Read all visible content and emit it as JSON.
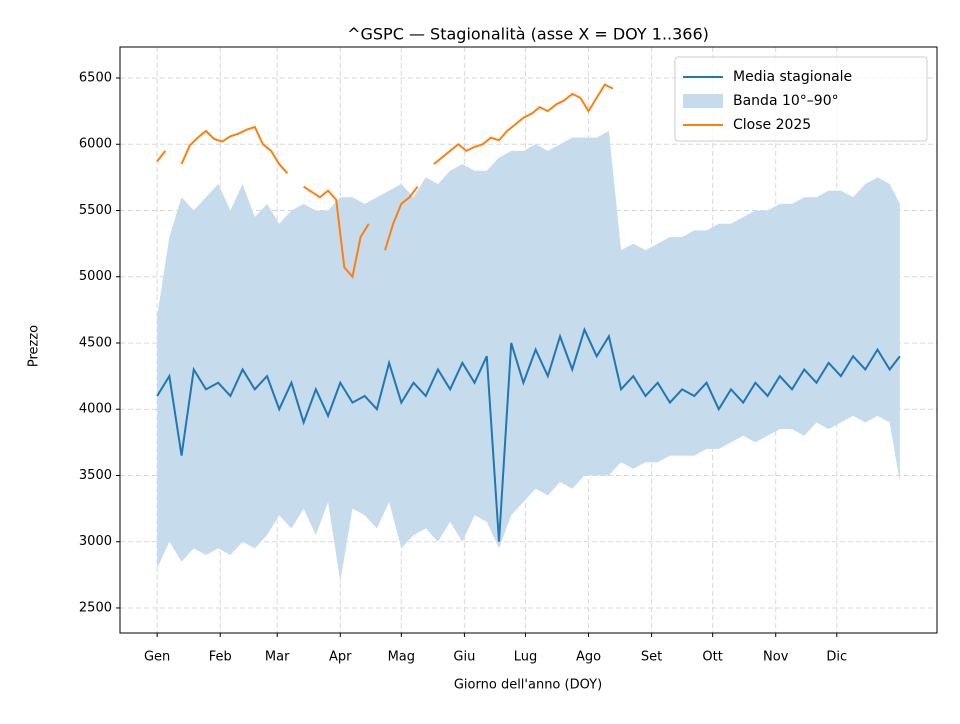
{
  "chart_data": {
    "type": "line",
    "title": "^GSPC — Stagionalità (asse X = DOY 1..366)",
    "x_label": "Giorno dell'anno (DOY)",
    "y_label": "Prezzo",
    "xlim": [
      -17.25,
      384.25
    ],
    "ylim": [
      2311,
      6734
    ],
    "xticks": [
      {
        "value": 1,
        "label": "Gen"
      },
      {
        "value": 32,
        "label": "Feb"
      },
      {
        "value": 60,
        "label": "Mar"
      },
      {
        "value": 91,
        "label": "Apr"
      },
      {
        "value": 121,
        "label": "Mag"
      },
      {
        "value": 152,
        "label": "Giu"
      },
      {
        "value": 182,
        "label": "Lug"
      },
      {
        "value": 213,
        "label": "Ago"
      },
      {
        "value": 244,
        "label": "Set"
      },
      {
        "value": 274,
        "label": "Ott"
      },
      {
        "value": 305,
        "label": "Nov"
      },
      {
        "value": 335,
        "label": "Dic"
      }
    ],
    "yticks": [
      2500,
      3000,
      3500,
      4000,
      4500,
      5000,
      5500,
      6000,
      6500
    ],
    "grid": true,
    "legend": "upper right",
    "series": [
      {
        "name": "Media stagionale",
        "kind": "line",
        "color": "#1f77b4",
        "x": [
          1,
          7,
          13,
          19,
          25,
          31,
          37,
          43,
          49,
          55,
          61,
          67,
          73,
          79,
          85,
          91,
          97,
          103,
          109,
          115,
          121,
          127,
          133,
          139,
          145,
          151,
          157,
          163,
          169,
          175,
          181,
          187,
          193,
          199,
          205,
          211,
          217,
          223,
          229,
          235,
          241,
          247,
          253,
          259,
          265,
          271,
          277,
          283,
          289,
          295,
          301,
          307,
          313,
          319,
          325,
          331,
          337,
          343,
          349,
          355,
          361,
          366
        ],
        "values": [
          4100,
          4250,
          3650,
          4300,
          4150,
          4200,
          4100,
          4300,
          4150,
          4250,
          4000,
          4200,
          3900,
          4150,
          3950,
          4200,
          4050,
          4100,
          4000,
          4350,
          4050,
          4200,
          4100,
          4300,
          4150,
          4350,
          4200,
          4400,
          3000,
          4500,
          4200,
          4450,
          4250,
          4550,
          4300,
          4600,
          4400,
          4550,
          4150,
          4250,
          4100,
          4200,
          4050,
          4150,
          4100,
          4200,
          4000,
          4150,
          4050,
          4200,
          4100,
          4250,
          4150,
          4300,
          4200,
          4350,
          4250,
          4400,
          4300,
          4450,
          4300,
          4400
        ]
      },
      {
        "name": "Banda 10°–90°",
        "kind": "band",
        "color": "#c6dcec",
        "x": [
          1,
          7,
          13,
          19,
          25,
          31,
          37,
          43,
          49,
          55,
          61,
          67,
          73,
          79,
          85,
          91,
          97,
          103,
          109,
          115,
          121,
          127,
          133,
          139,
          145,
          151,
          157,
          163,
          169,
          175,
          181,
          187,
          193,
          199,
          205,
          211,
          217,
          223,
          229,
          235,
          241,
          247,
          253,
          259,
          265,
          271,
          277,
          283,
          289,
          295,
          301,
          307,
          313,
          319,
          325,
          331,
          337,
          343,
          349,
          355,
          361,
          366
        ],
        "lower": [
          2800,
          3000,
          2850,
          2950,
          2900,
          2950,
          2900,
          3000,
          2950,
          3050,
          3200,
          3100,
          3250,
          3050,
          3300,
          2700,
          3250,
          3200,
          3100,
          3300,
          2950,
          3050,
          3100,
          3000,
          3150,
          3000,
          3200,
          3150,
          2950,
          3200,
          3300,
          3400,
          3350,
          3450,
          3400,
          3500,
          3500,
          3500,
          3600,
          3550,
          3600,
          3600,
          3650,
          3650,
          3650,
          3700,
          3700,
          3750,
          3800,
          3750,
          3800,
          3850,
          3850,
          3800,
          3900,
          3850,
          3900,
          3950,
          3900,
          3950,
          3900,
          3450
        ],
        "upper": [
          4700,
          5300,
          5600,
          5500,
          5600,
          5700,
          5500,
          5700,
          5450,
          5550,
          5400,
          5500,
          5550,
          5500,
          5500,
          5600,
          5600,
          5550,
          5600,
          5650,
          5700,
          5600,
          5750,
          5700,
          5800,
          5850,
          5800,
          5800,
          5900,
          5950,
          5950,
          6000,
          5950,
          6000,
          6050,
          6050,
          6050,
          6100,
          5200,
          5250,
          5200,
          5250,
          5300,
          5300,
          5350,
          5350,
          5400,
          5400,
          5450,
          5500,
          5500,
          5550,
          5550,
          5600,
          5600,
          5650,
          5650,
          5600,
          5700,
          5750,
          5700,
          5550
        ]
      },
      {
        "name": "Close 2025",
        "kind": "line",
        "color": "#ff7f0e",
        "x": [
          1,
          5,
          9,
          13,
          17,
          21,
          25,
          29,
          33,
          37,
          41,
          45,
          49,
          53,
          57,
          61,
          65,
          69,
          73,
          77,
          81,
          85,
          89,
          93,
          97,
          101,
          105,
          109,
          113,
          117,
          121,
          125,
          129,
          133,
          137,
          141,
          145,
          149,
          153,
          157,
          161,
          165,
          169,
          173,
          177,
          181,
          185,
          189,
          193,
          197,
          201,
          205,
          209,
          213,
          217,
          221,
          225
        ],
        "values": [
          5870,
          5950,
          null,
          5850,
          5990,
          6050,
          6100,
          6040,
          6020,
          6060,
          6080,
          6110,
          6130,
          6000,
          5950,
          5850,
          5780,
          null,
          5680,
          5640,
          5600,
          5650,
          5580,
          5070,
          5000,
          5300,
          5400,
          null,
          5200,
          5400,
          5550,
          5600,
          5680,
          null,
          5850,
          5900,
          5950,
          6000,
          5950,
          5980,
          6000,
          6050,
          6030,
          6100,
          6150,
          6200,
          6230,
          6280,
          6250,
          6300,
          6330,
          6380,
          6350,
          6250,
          6350,
          6450,
          6420
        ]
      }
    ]
  }
}
